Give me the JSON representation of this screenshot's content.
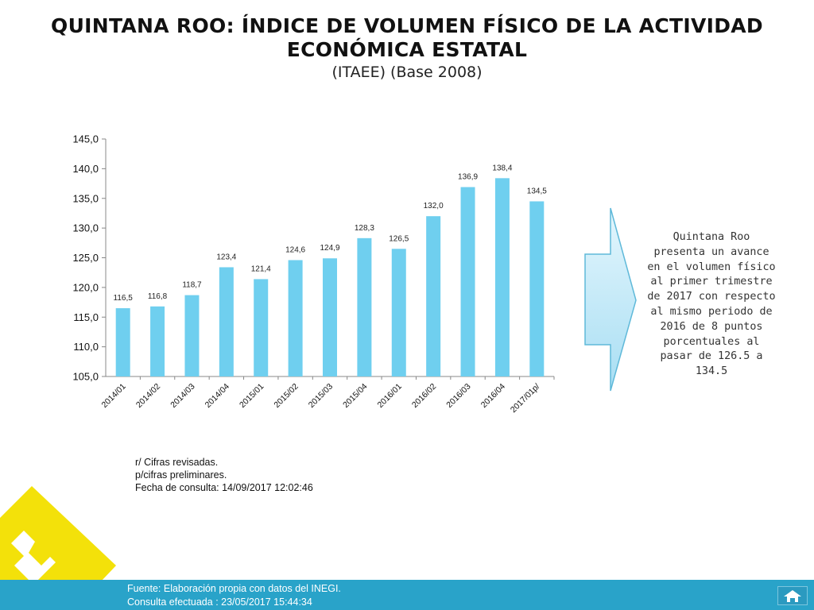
{
  "slide": {
    "title": "QUINTANA ROO: ÍNDICE DE VOLUMEN FÍSICO DE LA ACTIVIDAD ECONÓMICA ESTATAL",
    "subtitle": "(ITAEE) (Base  2008)"
  },
  "chart_data": {
    "type": "bar",
    "title": "",
    "xlabel": "",
    "ylabel": "",
    "categories": [
      "2014/01",
      "2014/02",
      "2014/03",
      "2014/04",
      "2015/01",
      "2015/02",
      "2015/03",
      "2015/04",
      "2016/01",
      "2016/02",
      "2016/03",
      "2016/04",
      "2017/01p/"
    ],
    "values": [
      116.5,
      116.8,
      118.7,
      123.4,
      121.4,
      124.6,
      124.9,
      128.3,
      126.5,
      132.0,
      136.9,
      138.4,
      134.5
    ],
    "data_labels": [
      "116,5",
      "116,8",
      "118,7",
      "123,4",
      "121,4",
      "124,6",
      "124,9",
      "128,3",
      "126,5",
      "132,0",
      "136,9",
      "138,4",
      "134,5"
    ],
    "ylim": [
      105,
      145
    ],
    "yticks": [
      105,
      110,
      115,
      120,
      125,
      130,
      135,
      140,
      145
    ],
    "ytick_labels": [
      "105,0",
      "110,0",
      "115,0",
      "120,0",
      "125,0",
      "130,0",
      "135,0",
      "140,0",
      "145,0"
    ],
    "bar_color": "#6fcfef",
    "grid": false,
    "legend": "none"
  },
  "notes": {
    "line1": "r/ Cifras revisadas.",
    "line2": "p/cifras preliminares.",
    "line3": "Fecha de consulta: 14/09/2017 12:02:46"
  },
  "callout": {
    "text": "Quintana Roo presenta un avance en el volumen físico al primer trimestre de 2017 con respecto al mismo periodo de 2016  de 8 puntos porcentuales al pasar de 126.5 a 134.5"
  },
  "footer": {
    "line1": "Fuente: Elaboración propia con datos del INEGI.",
    "line2": "Consulta efectuada : 23/05/2017 15:44:34",
    "bg_color": "#29a3c9"
  },
  "icons": {
    "logo": "yellow-geometric-logo-icon",
    "arrow": "right-arrow-icon",
    "home": "home-icon"
  },
  "colors": {
    "logo_yellow": "#f3e10a",
    "arrow_fill": "#b9e7f7"
  }
}
